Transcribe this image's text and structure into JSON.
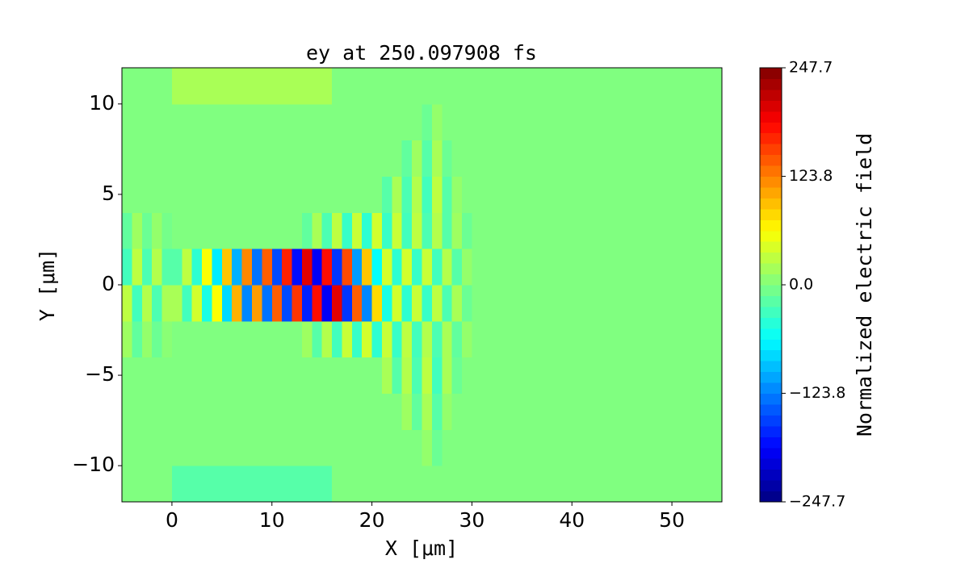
{
  "chart_data": {
    "type": "heatmap",
    "title": "ey at 250.097908 fs",
    "xlabel": "X [μm]",
    "ylabel": "Y [μm]",
    "colorbar_label": "Normalized electric field",
    "colormap": "jet",
    "x": [
      -4.5,
      -3.5,
      -2.5,
      -1.5,
      -0.5,
      0.5,
      1.5,
      2.5,
      3.5,
      4.5,
      5.5,
      6.5,
      7.5,
      8.5,
      9.5,
      10.5,
      11.5,
      12.5,
      13.5,
      14.5,
      15.5,
      16.5,
      17.5,
      18.5,
      19.5,
      20.5,
      21.5,
      22.5,
      23.5,
      24.5,
      25.5,
      26.5,
      27.5,
      28.5,
      29.5,
      30.5,
      31.5,
      32.5,
      33.5,
      34.5,
      35.5,
      36.5,
      37.5,
      38.5,
      39.5,
      40.5,
      41.5,
      42.5,
      43.5,
      44.5,
      45.5,
      46.5,
      47.5,
      48.5,
      49.5,
      50.5,
      51.5,
      52.5,
      53.5,
      54.5
    ],
    "y": [
      -11,
      -9,
      -7,
      -5,
      -3,
      -1,
      1,
      3,
      5,
      7,
      9,
      11
    ],
    "z": [
      [
        0,
        0,
        0,
        0,
        0,
        -20,
        -20,
        -20,
        -20,
        -20,
        -20,
        -20,
        -20,
        -20,
        -20,
        -20,
        -20,
        -20,
        -20,
        -20,
        -20,
        0,
        0,
        0,
        0,
        0,
        0,
        0,
        0,
        0,
        0,
        0,
        0,
        0,
        0,
        0,
        0,
        0,
        0,
        0,
        0,
        0,
        0,
        0,
        0,
        0,
        0,
        0,
        0,
        0,
        0,
        0,
        0,
        0,
        0,
        0,
        0,
        0,
        0,
        0
      ],
      [
        0,
        0,
        0,
        0,
        0,
        0,
        0,
        0,
        0,
        0,
        0,
        0,
        0,
        0,
        0,
        0,
        0,
        0,
        0,
        0,
        0,
        0,
        0,
        0,
        0,
        0,
        0,
        0,
        0,
        0,
        10,
        -10,
        0,
        0,
        0,
        0,
        0,
        0,
        0,
        0,
        0,
        0,
        0,
        0,
        0,
        0,
        0,
        0,
        0,
        0,
        0,
        0,
        0,
        0,
        0,
        0,
        0,
        0,
        0,
        0
      ],
      [
        0,
        0,
        0,
        0,
        0,
        0,
        0,
        0,
        0,
        0,
        0,
        0,
        0,
        0,
        0,
        0,
        0,
        0,
        0,
        0,
        0,
        0,
        0,
        0,
        0,
        0,
        0,
        0,
        15,
        -15,
        20,
        -20,
        10,
        0,
        0,
        0,
        0,
        0,
        0,
        0,
        0,
        0,
        0,
        0,
        0,
        0,
        0,
        0,
        0,
        0,
        0,
        0,
        0,
        0,
        0,
        0,
        0,
        0,
        0,
        0
      ],
      [
        0,
        0,
        0,
        0,
        0,
        0,
        0,
        0,
        0,
        0,
        0,
        0,
        0,
        0,
        0,
        0,
        0,
        0,
        0,
        0,
        0,
        0,
        0,
        0,
        0,
        0,
        20,
        -20,
        25,
        -25,
        30,
        -30,
        20,
        -10,
        0,
        0,
        0,
        0,
        0,
        0,
        0,
        0,
        0,
        0,
        0,
        0,
        0,
        0,
        0,
        0,
        0,
        0,
        0,
        0,
        0,
        0,
        0,
        0,
        0,
        0
      ],
      [
        15,
        -15,
        10,
        -10,
        5,
        0,
        0,
        0,
        0,
        0,
        0,
        0,
        0,
        0,
        0,
        0,
        0,
        0,
        15,
        -20,
        25,
        -30,
        35,
        -35,
        40,
        -40,
        35,
        -35,
        30,
        -30,
        25,
        -25,
        20,
        -15,
        10,
        0,
        0,
        0,
        0,
        0,
        0,
        0,
        0,
        0,
        0,
        0,
        0,
        0,
        0,
        0,
        0,
        0,
        0,
        0,
        0,
        0,
        0,
        0,
        0,
        0
      ],
      [
        30,
        -30,
        25,
        -25,
        20,
        20,
        -30,
        40,
        -50,
        60,
        -80,
        100,
        -120,
        110,
        -130,
        140,
        -150,
        160,
        -170,
        180,
        -190,
        200,
        -160,
        140,
        -120,
        80,
        -50,
        40,
        -40,
        35,
        -35,
        30,
        -25,
        20,
        -10,
        0,
        0,
        0,
        0,
        0,
        0,
        0,
        0,
        0,
        0,
        0,
        0,
        0,
        0,
        0,
        0,
        0,
        0,
        0,
        0,
        0,
        0,
        0,
        0,
        0
      ],
      [
        -30,
        30,
        -25,
        25,
        -20,
        -20,
        30,
        -40,
        60,
        -70,
        90,
        -100,
        120,
        -130,
        140,
        -150,
        170,
        -180,
        200,
        -190,
        180,
        -160,
        150,
        -110,
        90,
        -60,
        40,
        -40,
        40,
        -35,
        35,
        -30,
        25,
        -20,
        10,
        0,
        0,
        0,
        0,
        0,
        0,
        0,
        0,
        0,
        0,
        0,
        0,
        0,
        0,
        0,
        0,
        0,
        0,
        0,
        0,
        0,
        0,
        0,
        0,
        0
      ],
      [
        -15,
        15,
        -10,
        10,
        -5,
        0,
        0,
        0,
        0,
        0,
        0,
        0,
        0,
        0,
        0,
        0,
        0,
        0,
        -15,
        20,
        -25,
        30,
        -35,
        35,
        -40,
        40,
        -35,
        35,
        -30,
        30,
        -25,
        25,
        -20,
        15,
        -10,
        0,
        0,
        0,
        0,
        0,
        0,
        0,
        0,
        0,
        0,
        0,
        0,
        0,
        0,
        0,
        0,
        0,
        0,
        0,
        0,
        0,
        0,
        0,
        0,
        0
      ],
      [
        0,
        0,
        0,
        0,
        0,
        0,
        0,
        0,
        0,
        0,
        0,
        0,
        0,
        0,
        0,
        0,
        0,
        0,
        0,
        0,
        0,
        0,
        0,
        0,
        0,
        0,
        -20,
        20,
        -25,
        25,
        -30,
        30,
        -20,
        10,
        0,
        0,
        0,
        0,
        0,
        0,
        0,
        0,
        0,
        0,
        0,
        0,
        0,
        0,
        0,
        0,
        0,
        0,
        0,
        0,
        0,
        0,
        0,
        0,
        0,
        0
      ],
      [
        0,
        0,
        0,
        0,
        0,
        0,
        0,
        0,
        0,
        0,
        0,
        0,
        0,
        0,
        0,
        0,
        0,
        0,
        0,
        0,
        0,
        0,
        0,
        0,
        0,
        0,
        0,
        0,
        -15,
        15,
        -20,
        20,
        -10,
        0,
        0,
        0,
        0,
        0,
        0,
        0,
        0,
        0,
        0,
        0,
        0,
        0,
        0,
        0,
        0,
        0,
        0,
        0,
        0,
        0,
        0,
        0,
        0,
        0,
        0,
        0
      ],
      [
        0,
        0,
        0,
        0,
        0,
        0,
        0,
        0,
        0,
        0,
        0,
        0,
        0,
        0,
        0,
        0,
        0,
        0,
        0,
        0,
        0,
        0,
        0,
        0,
        0,
        0,
        0,
        0,
        0,
        0,
        -10,
        10,
        0,
        0,
        0,
        0,
        0,
        0,
        0,
        0,
        0,
        0,
        0,
        0,
        0,
        0,
        0,
        0,
        0,
        0,
        0,
        0,
        0,
        0,
        0,
        0,
        0,
        0,
        0,
        0
      ],
      [
        0,
        0,
        0,
        0,
        0,
        20,
        20,
        20,
        20,
        20,
        20,
        20,
        20,
        20,
        20,
        20,
        20,
        20,
        20,
        20,
        20,
        0,
        0,
        0,
        0,
        0,
        0,
        0,
        0,
        0,
        0,
        0,
        0,
        0,
        0,
        0,
        0,
        0,
        0,
        0,
        0,
        0,
        0,
        0,
        0,
        0,
        0,
        0,
        0,
        0,
        0,
        0,
        0,
        0,
        0,
        0,
        0,
        0,
        0,
        0
      ]
    ],
    "xlim": [
      -5,
      55
    ],
    "ylim": [
      -12,
      12
    ],
    "zlim": [
      -247.7,
      247.7
    ],
    "xticks": [
      0,
      10,
      20,
      30,
      40,
      50
    ],
    "yticks": [
      {
        "value": -10,
        "label": "−10"
      },
      {
        "value": -5,
        "label": "−5"
      },
      0,
      5,
      10
    ],
    "zticks": [
      {
        "value": -247.7,
        "label": "−247.7"
      },
      {
        "value": -123.8,
        "label": "−123.8"
      },
      {
        "value": 0,
        "label": "0.0"
      },
      123.8,
      247.7
    ]
  }
}
